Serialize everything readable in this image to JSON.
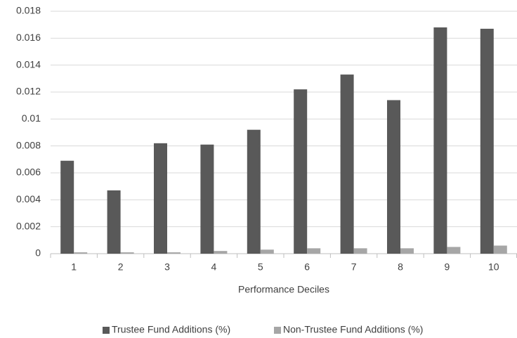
{
  "chart_data": {
    "type": "bar",
    "x_label": "Performance Deciles",
    "categories": [
      "1",
      "2",
      "3",
      "4",
      "5",
      "6",
      "7",
      "8",
      "9",
      "10"
    ],
    "series": [
      {
        "name": "Trustee Fund Additions (%)",
        "color": "#595959",
        "values": [
          0.0069,
          0.0047,
          0.0082,
          0.0081,
          0.0092,
          0.0122,
          0.0133,
          0.0114,
          0.0168,
          0.0167
        ]
      },
      {
        "name": "Non-Trustee Fund Additions (%)",
        "color": "#a6a6a6",
        "values": [
          0.0001,
          0.0001,
          0.0001,
          0.0002,
          0.0003,
          0.0004,
          0.0004,
          0.0004,
          0.0005,
          0.0006
        ]
      }
    ],
    "ylim": [
      0,
      0.018
    ],
    "yticks": [
      0,
      0.002,
      0.004,
      0.006,
      0.008,
      0.01,
      0.012,
      0.014,
      0.016,
      0.018
    ],
    "grid": true,
    "legend": "bottom"
  }
}
